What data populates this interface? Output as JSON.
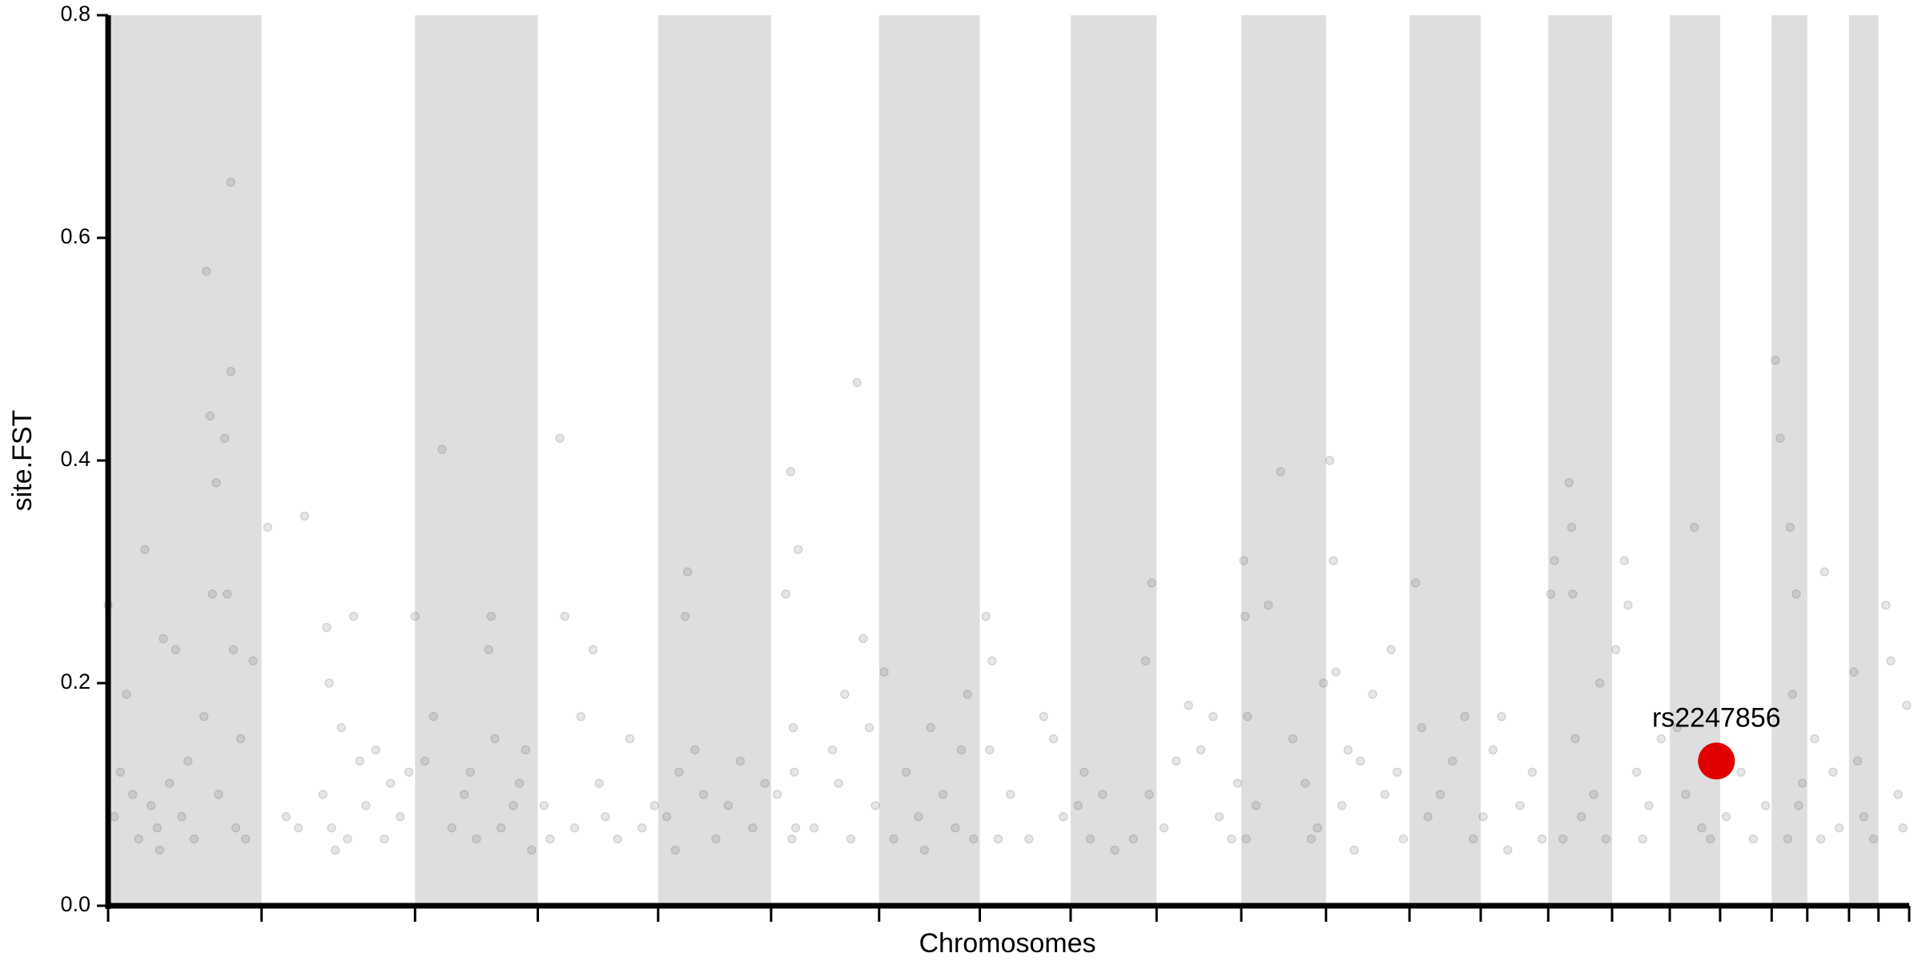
{
  "chart_data": {
    "type": "scatter",
    "xlabel": "Chromosomes",
    "ylabel": "site.FST",
    "xlim": [
      0,
      1467
    ],
    "ylim": [
      0,
      0.8
    ],
    "yticks": [
      {
        "value": 0,
        "label": "0.0"
      },
      0.2,
      0.4,
      0.6,
      0.8
    ],
    "xticks": [
      0,
      125,
      250,
      350,
      448,
      540,
      628,
      710,
      784,
      854,
      923,
      992,
      1060,
      1118,
      1173,
      1225,
      1272,
      1313,
      1355,
      1384,
      1418,
      1442,
      1467
    ],
    "band_color": "#dedede",
    "series": [
      {
        "color": "#555555",
        "x": [
          0,
          5,
          10,
          15,
          20,
          25,
          30,
          35,
          40,
          45,
          50,
          55,
          60,
          70,
          78,
          80,
          83,
          85,
          88,
          90,
          95,
          97,
          100,
          100,
          102,
          104,
          108,
          112,
          118,
          42,
          65,
          130,
          145,
          160,
          175,
          178,
          180,
          182,
          185,
          190,
          200,
          205,
          210,
          218,
          225,
          230,
          238,
          245,
          155,
          195,
          250,
          258,
          265,
          272,
          280,
          290,
          300,
          310,
          312,
          315,
          320,
          330,
          340,
          345,
          335,
          295,
          355,
          368,
          372,
          380,
          385,
          395,
          400,
          405,
          415,
          425,
          435,
          445,
          360,
          455,
          465,
          470,
          472,
          478,
          485,
          495,
          505,
          515,
          525,
          535,
          462,
          545,
          552,
          556,
          558,
          560,
          562,
          557,
          559,
          575,
          590,
          600,
          610,
          615,
          620,
          625,
          605,
          595,
          632,
          640,
          650,
          660,
          670,
          680,
          690,
          695,
          700,
          705,
          665,
          715,
          720,
          718,
          725,
          735,
          750,
          762,
          770,
          778,
          790,
          795,
          800,
          810,
          820,
          835,
          845,
          850,
          848,
          860,
          870,
          880,
          890,
          900,
          905,
          915,
          920,
          925,
          926,
          928,
          927,
          935,
          945,
          955,
          965,
          975,
          985,
          990,
          980,
          995,
          998,
          1000,
          1005,
          1010,
          1020,
          1030,
          1040,
          1045,
          1050,
          1055,
          1015,
          1065,
          1070,
          1075,
          1085,
          1095,
          1105,
          1112,
          1120,
          1128,
          1135,
          1140,
          1150,
          1160,
          1168,
          1175,
          1178,
          1190,
          1192,
          1193,
          1195,
          1200,
          1210,
          1215,
          1220,
          1185,
          1228,
          1235,
          1238,
          1245,
          1255,
          1265,
          1250,
          1278,
          1285,
          1292,
          1298,
          1300,
          1305,
          1318,
          1330,
          1340,
          1350,
          1358,
          1362,
          1370,
          1375,
          1380,
          1372,
          1368,
          1377,
          1390,
          1398,
          1405,
          1410,
          1395,
          1422,
          1425,
          1430,
          1438,
          1448,
          1452,
          1458,
          1462,
          1465
        ],
        "values": [
          0.27,
          0.08,
          0.12,
          0.19,
          0.1,
          0.06,
          0.32,
          0.09,
          0.07,
          0.24,
          0.11,
          0.23,
          0.08,
          0.06,
          0.17,
          0.57,
          0.44,
          0.28,
          0.38,
          0.1,
          0.42,
          0.28,
          0.65,
          0.48,
          0.23,
          0.07,
          0.15,
          0.06,
          0.22,
          0.05,
          0.13,
          0.34,
          0.08,
          0.35,
          0.1,
          0.25,
          0.2,
          0.07,
          0.05,
          0.16,
          0.26,
          0.13,
          0.09,
          0.14,
          0.06,
          0.11,
          0.08,
          0.12,
          0.07,
          0.06,
          0.26,
          0.13,
          0.17,
          0.41,
          0.07,
          0.1,
          0.06,
          0.23,
          0.26,
          0.15,
          0.07,
          0.09,
          0.14,
          0.05,
          0.11,
          0.12,
          0.09,
          0.42,
          0.26,
          0.07,
          0.17,
          0.23,
          0.11,
          0.08,
          0.06,
          0.15,
          0.07,
          0.09,
          0.06,
          0.08,
          0.12,
          0.26,
          0.3,
          0.14,
          0.1,
          0.06,
          0.09,
          0.13,
          0.07,
          0.11,
          0.05,
          0.1,
          0.28,
          0.39,
          0.16,
          0.07,
          0.32,
          0.06,
          0.12,
          0.07,
          0.14,
          0.19,
          0.47,
          0.24,
          0.16,
          0.09,
          0.06,
          0.11,
          0.21,
          0.06,
          0.12,
          0.08,
          0.16,
          0.1,
          0.07,
          0.14,
          0.19,
          0.06,
          0.05,
          0.26,
          0.22,
          0.14,
          0.06,
          0.1,
          0.06,
          0.17,
          0.15,
          0.08,
          0.09,
          0.12,
          0.06,
          0.1,
          0.05,
          0.06,
          0.22,
          0.29,
          0.1,
          0.07,
          0.13,
          0.18,
          0.14,
          0.17,
          0.08,
          0.06,
          0.11,
          0.31,
          0.26,
          0.17,
          0.06,
          0.09,
          0.27,
          0.39,
          0.15,
          0.11,
          0.07,
          0.2,
          0.06,
          0.4,
          0.31,
          0.21,
          0.09,
          0.14,
          0.13,
          0.19,
          0.1,
          0.23,
          0.12,
          0.06,
          0.05,
          0.29,
          0.16,
          0.08,
          0.1,
          0.13,
          0.17,
          0.06,
          0.08,
          0.14,
          0.17,
          0.05,
          0.09,
          0.12,
          0.06,
          0.28,
          0.31,
          0.38,
          0.34,
          0.28,
          0.15,
          0.08,
          0.1,
          0.2,
          0.06,
          0.06,
          0.23,
          0.31,
          0.27,
          0.12,
          0.09,
          0.15,
          0.06,
          0.16,
          0.1,
          0.34,
          0.07,
          0.13,
          0.06,
          0.08,
          0.12,
          0.06,
          0.09,
          0.49,
          0.42,
          0.34,
          0.28,
          0.11,
          0.19,
          0.06,
          0.09,
          0.15,
          0.3,
          0.12,
          0.07,
          0.06,
          0.21,
          0.13,
          0.08,
          0.06,
          0.27,
          0.22,
          0.1,
          0.07,
          0.18
        ]
      }
    ],
    "highlight": {
      "label": "rs2247856",
      "x": 1310,
      "value": 0.13,
      "color": "#e00000"
    }
  }
}
